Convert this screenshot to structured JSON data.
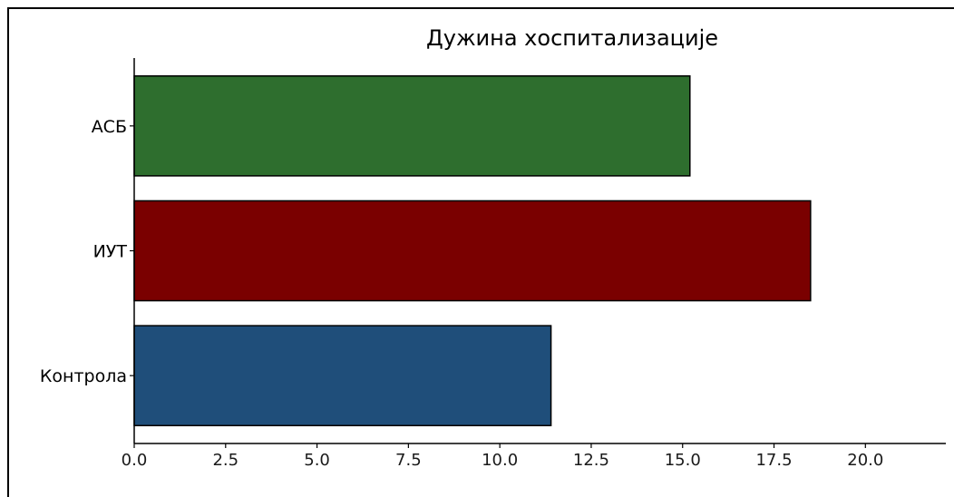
{
  "chart_data": {
    "type": "bar",
    "orientation": "horizontal",
    "title": "Дужина хоспитализације",
    "xlabel": "",
    "ylabel": "",
    "categories": [
      "Контрола",
      "ИУТ",
      "АСБ"
    ],
    "values": [
      11.4,
      18.5,
      15.2
    ],
    "colors": [
      "#1f4e7a",
      "#7a0000",
      "#2e6e2e"
    ],
    "edge_color": "#000000",
    "xlim": [
      0,
      22.2
    ],
    "xticks": [
      "0.0",
      "2.5",
      "5.0",
      "7.5",
      "10.0",
      "12.5",
      "15.0",
      "17.5",
      "20.0"
    ],
    "grid": false,
    "legend": "none"
  }
}
